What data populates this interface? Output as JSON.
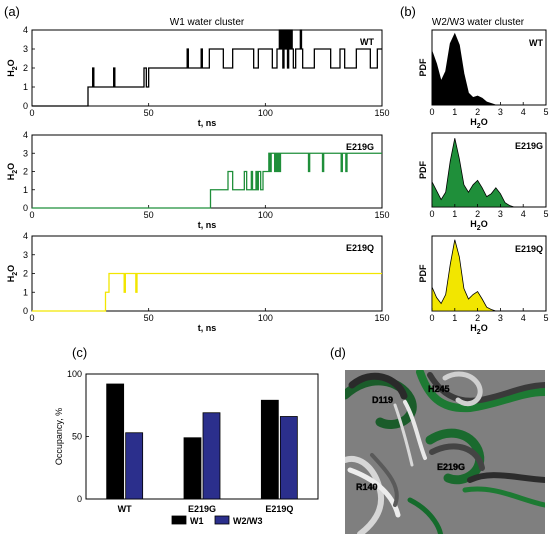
{
  "panel_labels": [
    "(a)",
    "(b)",
    "(c)",
    "(d)"
  ],
  "colors": {
    "WT": "#000000",
    "E219G": "#1f8f3a",
    "E219Q": "#f2e600",
    "W1": "#000000",
    "W2W3": "#2b2f8c"
  },
  "chart_data": [
    {
      "id": "a-WT",
      "type": "line",
      "title": "W1 water cluster",
      "series_label": "WT",
      "xlabel": "t, ns",
      "ylabel": "H2O",
      "xlim": [
        0,
        150
      ],
      "ylim": [
        0,
        4
      ],
      "xticks": [
        0,
        50,
        100,
        150
      ],
      "yticks": [
        0,
        1,
        2,
        3,
        4
      ],
      "steps": [
        [
          0,
          0
        ],
        [
          24,
          1
        ],
        [
          25,
          1
        ],
        [
          26,
          2
        ],
        [
          26.5,
          1
        ],
        [
          34,
          1
        ],
        [
          35,
          2
        ],
        [
          35.5,
          1
        ],
        [
          39,
          1
        ],
        [
          45,
          1
        ],
        [
          48,
          2
        ],
        [
          49,
          1
        ],
        [
          50,
          2
        ],
        [
          66,
          2
        ],
        [
          66.5,
          3
        ],
        [
          67,
          2
        ],
        [
          72,
          2
        ],
        [
          72.5,
          3
        ],
        [
          73,
          2
        ],
        [
          76,
          3
        ],
        [
          80,
          3
        ],
        [
          82,
          2
        ],
        [
          86,
          3
        ],
        [
          94,
          3
        ],
        [
          95,
          2
        ],
        [
          97,
          3
        ],
        [
          101,
          3
        ],
        [
          103,
          2
        ],
        [
          105,
          3
        ],
        [
          106,
          4
        ],
        [
          106.5,
          3
        ],
        [
          107,
          4
        ],
        [
          107.5,
          2
        ],
        [
          108,
          4
        ],
        [
          108.5,
          3
        ],
        [
          109,
          4
        ],
        [
          109.5,
          2
        ],
        [
          110,
          4
        ],
        [
          110.5,
          3
        ],
        [
          111,
          4
        ],
        [
          111.5,
          3
        ],
        [
          112,
          2
        ],
        [
          113,
          3
        ],
        [
          115,
          4
        ],
        [
          115.5,
          3
        ],
        [
          116,
          2
        ],
        [
          121,
          3
        ],
        [
          127,
          3
        ],
        [
          128,
          2
        ],
        [
          132,
          3
        ],
        [
          134,
          2
        ],
        [
          139,
          3
        ],
        [
          145,
          2
        ],
        [
          148,
          3
        ],
        [
          150,
          3
        ]
      ]
    },
    {
      "id": "a-E219G",
      "type": "line",
      "series_label": "E219G",
      "xlabel": "t, ns",
      "ylabel": "H2O",
      "xlim": [
        0,
        150
      ],
      "ylim": [
        0,
        4
      ],
      "xticks": [
        0,
        50,
        100,
        150
      ],
      "yticks": [
        0,
        1,
        2,
        3,
        4
      ],
      "steps": [
        [
          0,
          0
        ],
        [
          76,
          0
        ],
        [
          76.5,
          1
        ],
        [
          82,
          1
        ],
        [
          84,
          2
        ],
        [
          86,
          1
        ],
        [
          91,
          2
        ],
        [
          92,
          1
        ],
        [
          94,
          2
        ],
        [
          94.5,
          1
        ],
        [
          96,
          2
        ],
        [
          96.5,
          1
        ],
        [
          97,
          2
        ],
        [
          98,
          1
        ],
        [
          99,
          2
        ],
        [
          101,
          2
        ],
        [
          101.5,
          3
        ],
        [
          102,
          2
        ],
        [
          102.5,
          3
        ],
        [
          103,
          3
        ],
        [
          104,
          2
        ],
        [
          104.5,
          3
        ],
        [
          105,
          2
        ],
        [
          105.5,
          3
        ],
        [
          106,
          2
        ],
        [
          106.5,
          3
        ],
        [
          118,
          3
        ],
        [
          118.5,
          2
        ],
        [
          119,
          3
        ],
        [
          124,
          3
        ],
        [
          124.5,
          2
        ],
        [
          125,
          3
        ],
        [
          132,
          3
        ],
        [
          132.5,
          2
        ],
        [
          133,
          3
        ],
        [
          134,
          3
        ],
        [
          134.5,
          2
        ],
        [
          135,
          3
        ],
        [
          150,
          3
        ]
      ]
    },
    {
      "id": "a-E219Q",
      "type": "line",
      "series_label": "E219Q",
      "xlabel": "t, ns",
      "ylabel": "H2O",
      "xlim": [
        0,
        150
      ],
      "ylim": [
        0,
        4
      ],
      "xticks": [
        0,
        50,
        100,
        150
      ],
      "yticks": [
        0,
        1,
        2,
        3,
        4
      ],
      "steps": [
        [
          0,
          0
        ],
        [
          31,
          0
        ],
        [
          31.5,
          1
        ],
        [
          32.5,
          1
        ],
        [
          33,
          2
        ],
        [
          39,
          2
        ],
        [
          39.5,
          1
        ],
        [
          40,
          2
        ],
        [
          44,
          2
        ],
        [
          44.5,
          1
        ],
        [
          45,
          2
        ],
        [
          150,
          2
        ]
      ]
    },
    {
      "id": "b-WT",
      "type": "area",
      "title": "W2/W3 water cluster",
      "series_label": "WT",
      "xlabel": "H2O",
      "ylabel": "PDF",
      "xlim": [
        0,
        5
      ],
      "xticks": [
        0,
        1,
        2,
        3,
        4,
        5
      ],
      "x": [
        0,
        0.2,
        0.4,
        0.6,
        0.8,
        1.0,
        1.2,
        1.4,
        1.6,
        1.8,
        2.0,
        2.2,
        2.4,
        2.6,
        2.8,
        3.0
      ],
      "y": [
        0.72,
        0.55,
        0.32,
        0.45,
        0.82,
        0.95,
        0.8,
        0.42,
        0.16,
        0.1,
        0.12,
        0.09,
        0.04,
        0.02,
        0.0,
        0.0
      ]
    },
    {
      "id": "b-E219G",
      "type": "area",
      "series_label": "E219G",
      "xlabel": "H2O",
      "ylabel": "PDF",
      "xlim": [
        0,
        5
      ],
      "xticks": [
        0,
        1,
        2,
        3,
        4,
        5
      ],
      "x": [
        0,
        0.2,
        0.4,
        0.6,
        0.8,
        1.0,
        1.2,
        1.4,
        1.6,
        1.8,
        2.0,
        2.2,
        2.4,
        2.6,
        2.8,
        3.0,
        3.2,
        3.4,
        3.6,
        3.8
      ],
      "y": [
        0.34,
        0.22,
        0.1,
        0.2,
        0.62,
        0.93,
        0.65,
        0.3,
        0.2,
        0.3,
        0.36,
        0.26,
        0.14,
        0.18,
        0.26,
        0.18,
        0.06,
        0.02,
        0.0,
        0.0
      ]
    },
    {
      "id": "b-E219Q",
      "type": "area",
      "series_label": "E219Q",
      "xlabel": "H2O",
      "ylabel": "PDF",
      "xlim": [
        0,
        5
      ],
      "xticks": [
        0,
        1,
        2,
        3,
        4,
        5
      ],
      "x": [
        0,
        0.2,
        0.4,
        0.6,
        0.8,
        1.0,
        1.2,
        1.4,
        1.6,
        1.8,
        2.0,
        2.2,
        2.4,
        2.6,
        2.8,
        3.0
      ],
      "y": [
        0.32,
        0.18,
        0.1,
        0.22,
        0.62,
        0.95,
        0.72,
        0.3,
        0.16,
        0.22,
        0.26,
        0.16,
        0.05,
        0.02,
        0.0,
        0.0
      ]
    },
    {
      "id": "c",
      "type": "bar",
      "categories": [
        "WT",
        "E219G",
        "E219Q"
      ],
      "series": [
        {
          "name": "W1",
          "values": [
            92,
            49,
            79
          ]
        },
        {
          "name": "W2/W3",
          "values": [
            53,
            69,
            66
          ]
        }
      ],
      "ylabel": "Occupancy, %",
      "ylim": [
        0,
        100
      ],
      "yticks": [
        0,
        50,
        100
      ],
      "legend": "bottom"
    }
  ],
  "structure_labels": [
    "H245",
    "D119",
    "E219G",
    "R140"
  ]
}
